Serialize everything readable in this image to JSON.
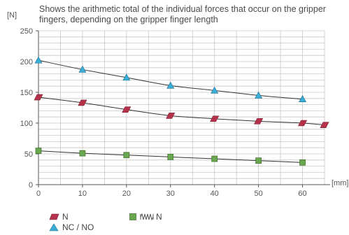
{
  "chart_data": {
    "type": "line",
    "title": "Shows the arithmetic total of the individual forces that occur on the gripper fingers, depending on the gripper finger length",
    "ylabel": "[N]",
    "xlabel": "[mm]",
    "xlim": [
      0,
      65
    ],
    "ylim": [
      0,
      250
    ],
    "x_ticks": [
      0,
      10,
      20,
      30,
      40,
      50,
      60
    ],
    "y_ticks": [
      0,
      50,
      100,
      150,
      200,
      250
    ],
    "grid": true,
    "legend_position": "bottom-left",
    "series": [
      {
        "name": "NC / NO",
        "marker": "triangle",
        "color": "#3aaed8",
        "x": [
          0,
          10,
          20,
          30,
          40,
          50,
          60
        ],
        "y": [
          202,
          187,
          174,
          161,
          153,
          145,
          139
        ]
      },
      {
        "name": "N",
        "marker": "parallelogram",
        "color": "#b5324a",
        "x": [
          0,
          10,
          20,
          30,
          40,
          50,
          60,
          65
        ],
        "y": [
          142,
          133,
          122,
          112,
          107,
          103,
          100,
          97
        ]
      },
      {
        "name": "N",
        "name_prefix_icon": "spring-icon",
        "marker": "square",
        "color": "#6aa84f",
        "x": [
          0,
          10,
          20,
          30,
          40,
          50,
          60
        ],
        "y": [
          55,
          51,
          48,
          45,
          42,
          39,
          36
        ]
      }
    ]
  }
}
